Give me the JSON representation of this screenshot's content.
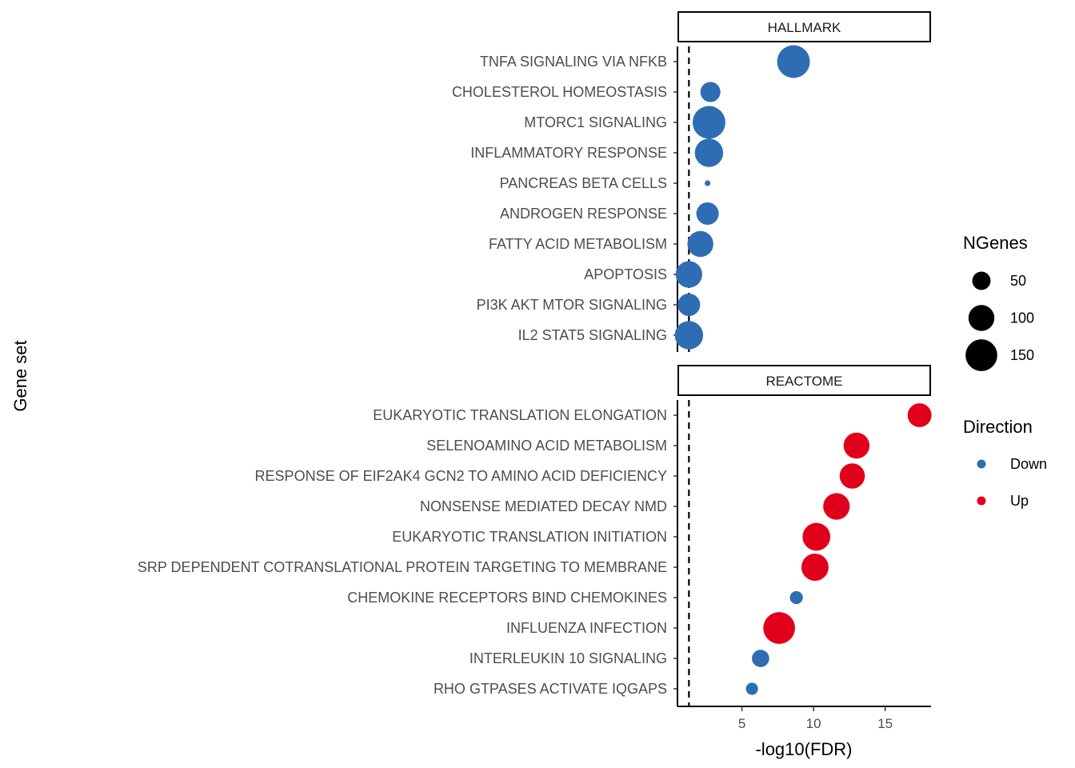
{
  "chart_data": {
    "type": "scatter",
    "xlabel": "-log10(FDR)",
    "ylabel": "Gene set",
    "x_ticks": [
      5,
      10,
      15
    ],
    "xlim": [
      0.5,
      18.2
    ],
    "reference_line_x": 1.3,
    "panels": [
      {
        "strip": "HALLMARK",
        "points": [
          {
            "label": "TNFA SIGNALING VIA NFKB",
            "x": 8.6,
            "ngenes": 160,
            "direction": "Down"
          },
          {
            "label": "CHOLESTEROL HOMEOSTASIS",
            "x": 2.8,
            "ngenes": 60,
            "direction": "Down"
          },
          {
            "label": "MTORC1 SIGNALING",
            "x": 2.7,
            "ngenes": 160,
            "direction": "Down"
          },
          {
            "label": "INFLAMMATORY RESPONSE",
            "x": 2.7,
            "ngenes": 120,
            "direction": "Down"
          },
          {
            "label": "PANCREAS BETA CELLS",
            "x": 2.6,
            "ngenes": 5,
            "direction": "Down"
          },
          {
            "label": "ANDROGEN RESPONSE",
            "x": 2.6,
            "ngenes": 75,
            "direction": "Down"
          },
          {
            "label": "FATTY ACID METABOLISM",
            "x": 2.1,
            "ngenes": 100,
            "direction": "Down"
          },
          {
            "label": "APOPTOSIS",
            "x": 1.3,
            "ngenes": 105,
            "direction": "Down"
          },
          {
            "label": "PI3K AKT MTOR SIGNALING",
            "x": 1.3,
            "ngenes": 75,
            "direction": "Down"
          },
          {
            "label": "IL2 STAT5 SIGNALING",
            "x": 1.3,
            "ngenes": 120,
            "direction": "Down"
          }
        ]
      },
      {
        "strip": "REACTOME",
        "points": [
          {
            "label": "EUKARYOTIC TRANSLATION ELONGATION",
            "x": 17.4,
            "ngenes": 85,
            "direction": "Up"
          },
          {
            "label": "SELENOAMINO ACID METABOLISM",
            "x": 13.0,
            "ngenes": 100,
            "direction": "Up"
          },
          {
            "label": "RESPONSE OF EIF2AK4 GCN2 TO AMINO ACID DEFICIENCY",
            "x": 12.7,
            "ngenes": 95,
            "direction": "Up"
          },
          {
            "label": "NONSENSE MEDIATED DECAY NMD",
            "x": 11.6,
            "ngenes": 105,
            "direction": "Up"
          },
          {
            "label": "EUKARYOTIC TRANSLATION INITIATION",
            "x": 10.2,
            "ngenes": 115,
            "direction": "Up"
          },
          {
            "label": "SRP DEPENDENT COTRANSLATIONAL PROTEIN TARGETING TO MEMBRANE",
            "x": 10.1,
            "ngenes": 110,
            "direction": "Up"
          },
          {
            "label": "CHEMOKINE RECEPTORS BIND CHEMOKINES",
            "x": 8.8,
            "ngenes": 25,
            "direction": "Down"
          },
          {
            "label": "INFLUENZA INFECTION",
            "x": 7.6,
            "ngenes": 150,
            "direction": "Up"
          },
          {
            "label": "INTERLEUKIN 10 SIGNALING",
            "x": 6.3,
            "ngenes": 45,
            "direction": "Down"
          },
          {
            "label": "RHO GTPASES ACTIVATE IQGAPS",
            "x": 5.7,
            "ngenes": 22,
            "direction": "Down"
          }
        ]
      }
    ],
    "legend": {
      "size_title": "NGenes",
      "size_entries": [
        {
          "label": "50",
          "value": 50
        },
        {
          "label": "100",
          "value": 100
        },
        {
          "label": "150",
          "value": 150
        }
      ],
      "color_title": "Direction",
      "color_entries": [
        {
          "label": "Down",
          "color": "#2e6db4"
        },
        {
          "label": "Up",
          "color": "#e0001b"
        }
      ]
    },
    "colors": {
      "Down": "#2e6db4",
      "Up": "#e0001b"
    }
  }
}
